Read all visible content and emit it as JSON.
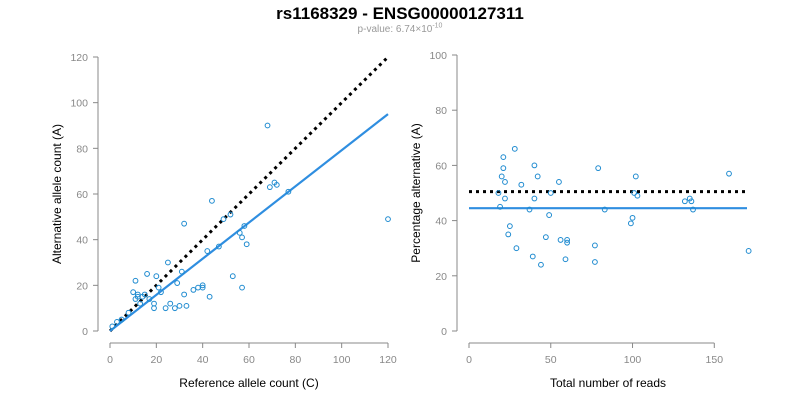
{
  "title": "rs1168329 - ENSG00000127311",
  "subtitle": {
    "prefix": "p-value: 6.74×10",
    "exponent": "-10"
  },
  "colors": {
    "points": "#1f8bd0",
    "fit_line": "#2f8ee0",
    "reference_line": "#000000",
    "tick_text": "#888888",
    "axis_line": "#888888"
  },
  "chart_data": [
    {
      "type": "scatter",
      "xlabel": "Reference allele count (C)",
      "ylabel": "Alternative allele count (A)",
      "xlim": [
        0,
        120
      ],
      "ylim": [
        0,
        120
      ],
      "xticks": [
        0,
        20,
        40,
        60,
        80,
        100,
        120
      ],
      "yticks": [
        0,
        20,
        40,
        60,
        80,
        100,
        120
      ],
      "grid": false,
      "points": [
        [
          1,
          2
        ],
        [
          3,
          4
        ],
        [
          5,
          5
        ],
        [
          8,
          8
        ],
        [
          10,
          17
        ],
        [
          11,
          14
        ],
        [
          11,
          22
        ],
        [
          12,
          16
        ],
        [
          12,
          15
        ],
        [
          13,
          12
        ],
        [
          14,
          15
        ],
        [
          15,
          16
        ],
        [
          16,
          25
        ],
        [
          17,
          14
        ],
        [
          19,
          12
        ],
        [
          19,
          10
        ],
        [
          20,
          24
        ],
        [
          21,
          19
        ],
        [
          22,
          17
        ],
        [
          24,
          10
        ],
        [
          25,
          30
        ],
        [
          26,
          12
        ],
        [
          28,
          10
        ],
        [
          29,
          21
        ],
        [
          30,
          11
        ],
        [
          31,
          26
        ],
        [
          32,
          16
        ],
        [
          32,
          47
        ],
        [
          33,
          11
        ],
        [
          36,
          18
        ],
        [
          38,
          19
        ],
        [
          40,
          19
        ],
        [
          40,
          20
        ],
        [
          42,
          35
        ],
        [
          43,
          15
        ],
        [
          44,
          57
        ],
        [
          47,
          37
        ],
        [
          49,
          49
        ],
        [
          52,
          51
        ],
        [
          53,
          24
        ],
        [
          56,
          43
        ],
        [
          57,
          19
        ],
        [
          57,
          41
        ],
        [
          58,
          46
        ],
        [
          59,
          38
        ],
        [
          68,
          90
        ],
        [
          69,
          63
        ],
        [
          71,
          65
        ],
        [
          72,
          64
        ],
        [
          77,
          61
        ],
        [
          120,
          49
        ]
      ],
      "fit_line": {
        "from": [
          0,
          0
        ],
        "to": [
          120,
          95
        ]
      },
      "reference_line": {
        "from": [
          0,
          0
        ],
        "to": [
          120,
          120
        ]
      }
    },
    {
      "type": "scatter",
      "xlabel": "Total number of reads",
      "ylabel": "Percentage alternative (A)",
      "xlim": [
        0,
        170
      ],
      "ylim": [
        0,
        100
      ],
      "xticks": [
        0,
        50,
        100,
        150
      ],
      "yticks": [
        0,
        20,
        40,
        60,
        80,
        100
      ],
      "grid": false,
      "points": [
        [
          18,
          50
        ],
        [
          19,
          45
        ],
        [
          20,
          56
        ],
        [
          21,
          63
        ],
        [
          21,
          59
        ],
        [
          22,
          54
        ],
        [
          22,
          48
        ],
        [
          24,
          35
        ],
        [
          25,
          38
        ],
        [
          28,
          66
        ],
        [
          29,
          30
        ],
        [
          32,
          53
        ],
        [
          37,
          44
        ],
        [
          39,
          27
        ],
        [
          40,
          48
        ],
        [
          40,
          60
        ],
        [
          42,
          56
        ],
        [
          44,
          24
        ],
        [
          47,
          34
        ],
        [
          49,
          42
        ],
        [
          50,
          50
        ],
        [
          55,
          54
        ],
        [
          56,
          33
        ],
        [
          59,
          26
        ],
        [
          60,
          33
        ],
        [
          60,
          32
        ],
        [
          77,
          31
        ],
        [
          77,
          25
        ],
        [
          79,
          59
        ],
        [
          83,
          44
        ],
        [
          99,
          39
        ],
        [
          100,
          41
        ],
        [
          101,
          50
        ],
        [
          102,
          56
        ],
        [
          103,
          49
        ],
        [
          132,
          47
        ],
        [
          135,
          48
        ],
        [
          136,
          47
        ],
        [
          137,
          44
        ],
        [
          159,
          57
        ],
        [
          171,
          29
        ]
      ],
      "fit_line": {
        "y": 44.5
      },
      "reference_line": {
        "y": 50.5
      }
    }
  ]
}
